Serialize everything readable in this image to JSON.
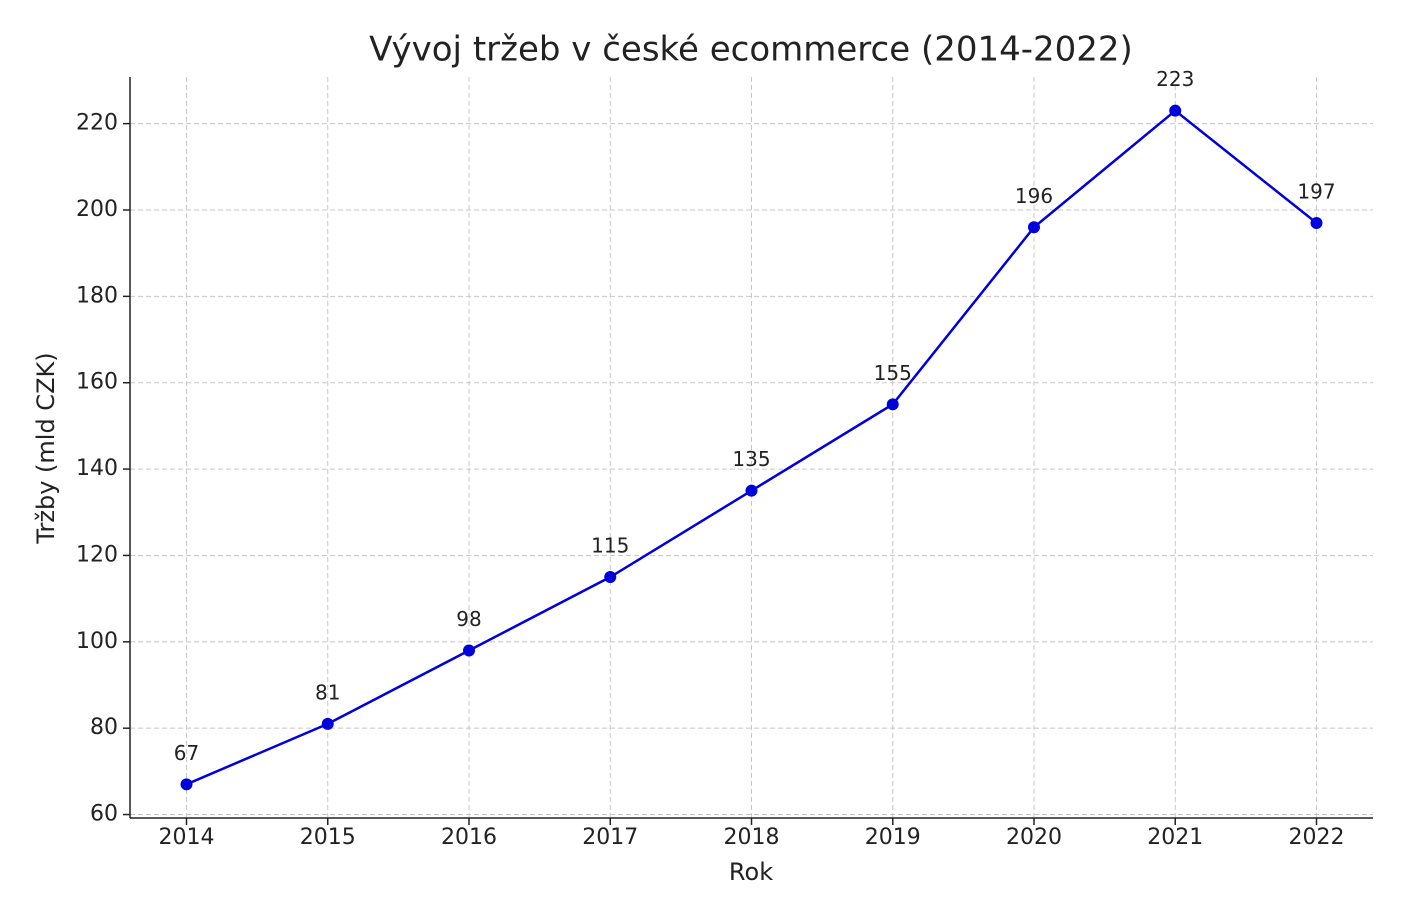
{
  "chart_data": {
    "type": "line",
    "title": "Vývoj tržeb v české ecommerce (2014-2022)",
    "x_label": "Rok",
    "y_label": "Tržby (mld CZK)",
    "x": [
      2014,
      2015,
      2016,
      2017,
      2018,
      2019,
      2020,
      2021,
      2022
    ],
    "series": [
      {
        "name": "Tržby",
        "color": "#0000dd",
        "values": [
          67,
          81,
          98,
          115,
          135,
          155,
          196,
          223,
          197
        ]
      }
    ],
    "xlim": [
      2013.6,
      2022.4
    ],
    "xticks": [
      2014,
      2015,
      2016,
      2017,
      2018,
      2019,
      2020,
      2021,
      2022
    ],
    "ylim": [
      59.2,
      230.8
    ],
    "yticks": [
      60,
      80,
      100,
      120,
      140,
      160,
      180,
      200,
      220
    ],
    "grid": true
  }
}
